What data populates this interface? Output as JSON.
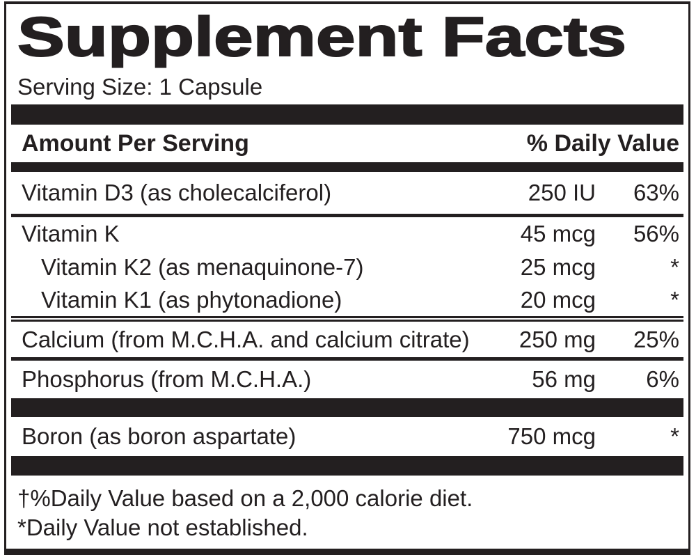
{
  "colors": {
    "ink": "#231f20",
    "paper": "#ffffff"
  },
  "label": {
    "title": "Supplement Facts",
    "serving_size": "Serving Size: 1 Capsule",
    "columns": {
      "left": "Amount Per Serving",
      "right": "% Daily Value"
    },
    "rows": [
      {
        "name": "Vitamin D3 (as cholecalciferol)",
        "amount": "250 IU",
        "daily_value": "63%"
      },
      {
        "name": "Vitamin K",
        "amount": "45 mcg",
        "daily_value": "56%"
      },
      {
        "name": "Vitamin K2 (as menaquinone-7)",
        "amount": "25 mcg",
        "daily_value": "*"
      },
      {
        "name": "Vitamin K1 (as phytonadione)",
        "amount": "20 mcg",
        "daily_value": "*"
      },
      {
        "name": "Calcium (from M.C.H.A. and calcium citrate)",
        "amount": "250 mg",
        "daily_value": "25%"
      },
      {
        "name": "Phosphorus (from M.C.H.A.)",
        "amount": "56 mg",
        "daily_value": "6%"
      },
      {
        "name": "Boron (as boron aspartate)",
        "amount": "750 mcg",
        "daily_value": "*"
      }
    ],
    "footnotes": [
      "†%Daily Value based on a 2,000 calorie diet.",
      "*Daily Value not established."
    ]
  }
}
